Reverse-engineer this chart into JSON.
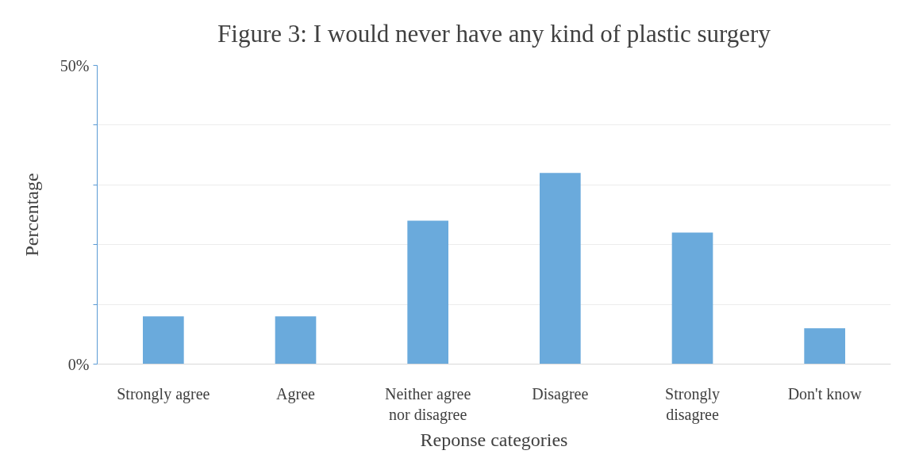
{
  "chart_data": {
    "type": "bar",
    "title": "Figure 3: I would never have any kind of plastic surgery",
    "xlabel": "Reponse categories",
    "ylabel": "Percentage",
    "categories": [
      "Strongly agree",
      "Agree",
      "Neither agree nor disagree",
      "Disagree",
      "Strongly disagree",
      "Don't know"
    ],
    "values": [
      8,
      8,
      24,
      32,
      22,
      6
    ],
    "color": "#6aaadc",
    "ylim": [
      0,
      50
    ],
    "yticks": [
      {
        "value": 0,
        "label": "0%"
      },
      {
        "value": 10,
        "label": null
      },
      {
        "value": 20,
        "label": null
      },
      {
        "value": 30,
        "label": null
      },
      {
        "value": 40,
        "label": null
      },
      {
        "value": 50,
        "label": "50%"
      }
    ],
    "grid": "y"
  }
}
